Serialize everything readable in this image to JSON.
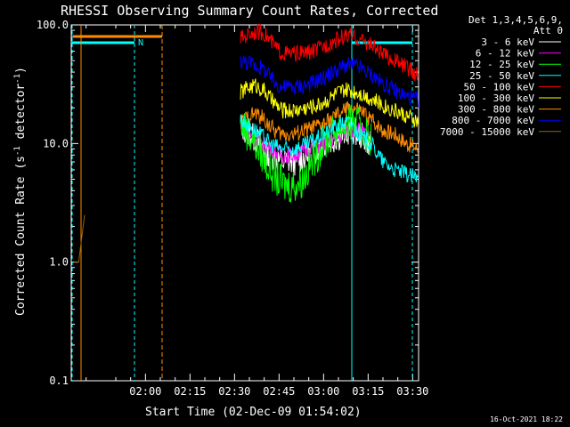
{
  "chart_data": {
    "type": "line",
    "title": "RHESSI Observing Summary Count Rates, Corrected",
    "xlabel": "Start Time (02-Dec-09 01:54:02)",
    "ylabel_main": "Corrected Count Rate (s",
    "ylabel_sup1": "-1",
    "ylabel_mid": " detector",
    "ylabel_sup2": "-1",
    "ylabel_end": ")",
    "y_scale": "log",
    "ylim": [
      0.1,
      100
    ],
    "xlim_minutes": [
      95,
      212
    ],
    "y_ticks": [
      {
        "value": 0.1,
        "label": "0.1"
      },
      {
        "value": 1,
        "label": "1.0"
      },
      {
        "value": 10,
        "label": "10.0"
      },
      {
        "value": 100,
        "label": "100.0"
      }
    ],
    "x_ticks": [
      {
        "minute": 120,
        "label": "02:00"
      },
      {
        "minute": 135,
        "label": "02:15"
      },
      {
        "minute": 150,
        "label": "02:30"
      },
      {
        "minute": 165,
        "label": "02:45"
      },
      {
        "minute": 180,
        "label": "03:00"
      },
      {
        "minute": 195,
        "label": "03:15"
      },
      {
        "minute": 210,
        "label": "03:30"
      }
    ],
    "legend": {
      "header1": "Det 1,3,4,5,6,9,",
      "header2": "Att 0",
      "placement": "right"
    },
    "series": [
      {
        "name": "3 - 6 keV",
        "color": "#ffffff",
        "points": [
          [
            152,
            14
          ],
          [
            157,
            11
          ],
          [
            162,
            8
          ],
          [
            166,
            7
          ],
          [
            170,
            7
          ],
          [
            175,
            8
          ],
          [
            180,
            10
          ],
          [
            184,
            11
          ],
          [
            187,
            12
          ],
          [
            189,
            13
          ],
          [
            192,
            12
          ],
          [
            196,
            10
          ]
        ]
      },
      {
        "name": "6 - 12 keV",
        "color": "#ff00ff",
        "points": [
          [
            152,
            14
          ],
          [
            157,
            11
          ],
          [
            162,
            9
          ],
          [
            166,
            8
          ],
          [
            170,
            8
          ],
          [
            175,
            9
          ],
          [
            180,
            10
          ],
          [
            184,
            11
          ],
          [
            187,
            12
          ],
          [
            189,
            13
          ],
          [
            192,
            13
          ],
          [
            196,
            11
          ]
        ]
      },
      {
        "name": "12 - 25 keV",
        "color": "#00ff00",
        "points": [
          [
            152,
            15
          ],
          [
            157,
            10
          ],
          [
            162,
            6
          ],
          [
            166,
            4.5
          ],
          [
            170,
            4.5
          ],
          [
            173,
            5
          ],
          [
            176,
            7
          ],
          [
            180,
            10
          ],
          [
            184,
            13
          ],
          [
            187,
            14
          ],
          [
            189,
            15
          ],
          [
            192,
            14
          ],
          [
            196,
            11
          ]
        ]
      },
      {
        "name": "25 - 50 keV",
        "color": "#00ffff",
        "points": [
          [
            152,
            16
          ],
          [
            157,
            13
          ],
          [
            162,
            10
          ],
          [
            166,
            9
          ],
          [
            170,
            9
          ],
          [
            175,
            10
          ],
          [
            180,
            12
          ],
          [
            184,
            14
          ],
          [
            187,
            15
          ],
          [
            189,
            15
          ],
          [
            192,
            12
          ],
          [
            196,
            10
          ],
          [
            200,
            7
          ],
          [
            204,
            6
          ],
          [
            208,
            5.5
          ],
          [
            212,
            5
          ]
        ]
      },
      {
        "name": "50 - 100 keV",
        "color": "#ff0000",
        "points": [
          [
            152,
            77
          ],
          [
            155,
            84
          ],
          [
            157,
            88
          ],
          [
            160,
            85
          ],
          [
            162,
            74
          ],
          [
            164,
            64
          ],
          [
            166,
            58
          ],
          [
            170,
            57
          ],
          [
            174,
            58
          ],
          [
            178,
            62
          ],
          [
            181,
            68
          ],
          [
            184,
            74
          ],
          [
            187,
            80
          ],
          [
            189,
            80
          ],
          [
            192,
            76
          ],
          [
            196,
            68
          ],
          [
            200,
            56
          ],
          [
            204,
            50
          ],
          [
            208,
            44
          ],
          [
            212,
            37
          ]
        ]
      },
      {
        "name": "100 - 300 keV",
        "color": "#ffff00",
        "points": [
          [
            152,
            27
          ],
          [
            155,
            30
          ],
          [
            157,
            31
          ],
          [
            160,
            28
          ],
          [
            162,
            24
          ],
          [
            164,
            21
          ],
          [
            166,
            19
          ],
          [
            170,
            19
          ],
          [
            174,
            20
          ],
          [
            178,
            21
          ],
          [
            181,
            23
          ],
          [
            184,
            26
          ],
          [
            187,
            28
          ],
          [
            189,
            28
          ],
          [
            192,
            27
          ],
          [
            196,
            24
          ],
          [
            200,
            21
          ],
          [
            204,
            19
          ],
          [
            208,
            17
          ],
          [
            212,
            15
          ]
        ]
      },
      {
        "name": "300 - 800 keV",
        "color": "#ff8c00",
        "points": [
          [
            152,
            15
          ],
          [
            155,
            17
          ],
          [
            157,
            18
          ],
          [
            160,
            16
          ],
          [
            162,
            14
          ],
          [
            164,
            12.5
          ],
          [
            166,
            12
          ],
          [
            170,
            12
          ],
          [
            174,
            13
          ],
          [
            178,
            14
          ],
          [
            181,
            15
          ],
          [
            184,
            17
          ],
          [
            187,
            19
          ],
          [
            189,
            20
          ],
          [
            192,
            19
          ],
          [
            196,
            16
          ],
          [
            200,
            13
          ],
          [
            204,
            12
          ],
          [
            208,
            10
          ],
          [
            212,
            9
          ]
        ]
      },
      {
        "name": "800 - 7000 keV",
        "color": "#0000ff",
        "points": [
          [
            152,
            50
          ],
          [
            155,
            48
          ],
          [
            157,
            46
          ],
          [
            160,
            42
          ],
          [
            162,
            36
          ],
          [
            164,
            32
          ],
          [
            166,
            30
          ],
          [
            170,
            30
          ],
          [
            174,
            31
          ],
          [
            178,
            34
          ],
          [
            181,
            37
          ],
          [
            184,
            41
          ],
          [
            187,
            45
          ],
          [
            189,
            46
          ],
          [
            192,
            44
          ],
          [
            196,
            38
          ],
          [
            200,
            32
          ],
          [
            204,
            28
          ],
          [
            208,
            25
          ],
          [
            212,
            23
          ]
        ]
      },
      {
        "name": "7000 - 15000 keV",
        "color": "#9a6400",
        "points": [
          [
            96,
            1
          ],
          [
            97.5,
            1
          ],
          [
            99.5,
            2.5
          ]
        ]
      }
    ],
    "footer_date": "16-Oct-2021 18:22",
    "n_marker": "N"
  }
}
